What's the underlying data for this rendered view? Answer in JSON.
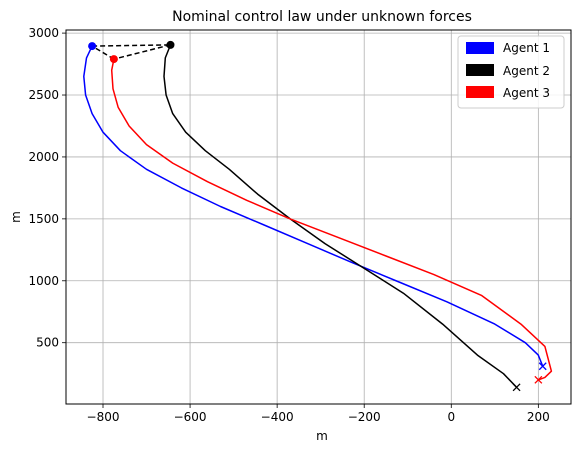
{
  "chart_data": {
    "type": "line",
    "title": "Nominal control law under unknown forces",
    "xlabel": "m",
    "ylabel": "m",
    "xlim": [
      -885,
      275
    ],
    "ylim": [
      5,
      3025
    ],
    "x_ticks": [
      -800,
      -600,
      -400,
      -200,
      0,
      200
    ],
    "y_ticks": [
      500,
      1000,
      1500,
      2000,
      2500,
      3000
    ],
    "x_tick_labels": [
      "−800",
      "−600",
      "−400",
      "−200",
      "0",
      "200"
    ],
    "y_tick_labels": [
      "500",
      "1000",
      "1500",
      "2000",
      "2500",
      "3000"
    ],
    "grid": true,
    "legend_position": "top-right",
    "series": [
      {
        "name": "Agent 1",
        "color": "#0000ff",
        "x": [
          -825,
          -838,
          -844,
          -840,
          -825,
          -800,
          -760,
          -700,
          -620,
          -530,
          -430,
          -330,
          -230,
          -120,
          -10,
          100,
          170,
          200,
          210
        ],
        "y": [
          2895,
          2800,
          2650,
          2500,
          2350,
          2200,
          2050,
          1900,
          1750,
          1600,
          1450,
          1300,
          1150,
          990,
          830,
          650,
          500,
          400,
          310
        ]
      },
      {
        "name": "Agent 2",
        "color": "#000000",
        "x": [
          -645,
          -657,
          -660,
          -655,
          -640,
          -610,
          -565,
          -510,
          -445,
          -370,
          -290,
          -200,
          -110,
          -20,
          60,
          120,
          150
        ],
        "y": [
          2905,
          2800,
          2650,
          2500,
          2350,
          2200,
          2050,
          1900,
          1700,
          1500,
          1300,
          1100,
          900,
          650,
          400,
          250,
          140
        ]
      },
      {
        "name": "Agent 3",
        "color": "#ff0000",
        "x": [
          -775,
          -780,
          -777,
          -765,
          -740,
          -700,
          -640,
          -560,
          -470,
          -370,
          -260,
          -150,
          -40,
          70,
          160,
          215,
          230,
          215,
          200
        ],
        "y": [
          2790,
          2700,
          2550,
          2400,
          2250,
          2100,
          1950,
          1800,
          1650,
          1500,
          1350,
          1200,
          1050,
          880,
          650,
          470,
          270,
          220,
          200
        ]
      }
    ],
    "formation_links": [
      {
        "x": [
          -825,
          -645
        ],
        "y": [
          2895,
          2905
        ]
      },
      {
        "x": [
          -645,
          -775
        ],
        "y": [
          2905,
          2790
        ]
      },
      {
        "x": [
          -775,
          -825
        ],
        "y": [
          2790,
          2895
        ]
      }
    ]
  }
}
